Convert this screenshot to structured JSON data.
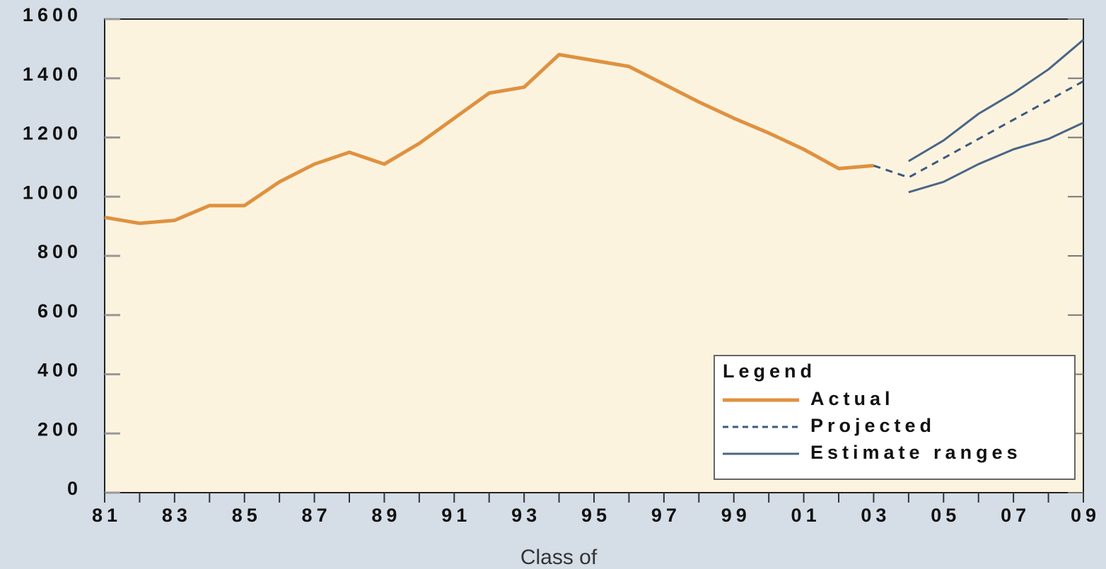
{
  "chart_data": {
    "type": "line",
    "xlabel": "Class of",
    "categories": [
      "81",
      null,
      "83",
      null,
      "85",
      null,
      "87",
      null,
      "89",
      null,
      "91",
      null,
      "93",
      null,
      "95",
      null,
      "97",
      null,
      "99",
      null,
      "01",
      null,
      "03",
      null,
      "05",
      null,
      "07",
      null,
      "09"
    ],
    "series": [
      {
        "name": "Actual",
        "color": "#e0913f",
        "width": 5,
        "values": [
          930,
          910,
          920,
          970,
          970,
          1050,
          1110,
          1150,
          1110,
          1180,
          1265,
          1350,
          1370,
          1480,
          1460,
          1440,
          1380,
          1320,
          1265,
          1215,
          1160,
          1095,
          1105,
          null,
          null,
          null,
          null,
          null,
          null
        ]
      },
      {
        "name": "Projected",
        "color": "#3d5a7e",
        "width": 3,
        "dashed": true,
        "values": [
          null,
          null,
          null,
          null,
          null,
          null,
          null,
          null,
          null,
          null,
          null,
          null,
          null,
          null,
          null,
          null,
          null,
          null,
          null,
          null,
          null,
          null,
          1105,
          1065,
          1130,
          1195,
          1260,
          1325,
          1390
        ]
      },
      {
        "name": "Estimate ranges",
        "color": "#4a6686",
        "width": 3,
        "values": [
          null,
          null,
          null,
          null,
          null,
          null,
          null,
          null,
          null,
          null,
          null,
          null,
          null,
          null,
          null,
          null,
          null,
          null,
          null,
          null,
          null,
          null,
          null,
          1120,
          1190,
          1280,
          1350,
          1430,
          1530
        ],
        "lower": [
          null,
          null,
          null,
          null,
          null,
          null,
          null,
          null,
          null,
          null,
          null,
          null,
          null,
          null,
          null,
          null,
          null,
          null,
          null,
          null,
          null,
          null,
          null,
          1015,
          1050,
          1110,
          1160,
          1195,
          1250
        ]
      }
    ],
    "ylim": [
      0,
      1600
    ],
    "yticks": [
      0,
      200,
      400,
      600,
      800,
      1000,
      1200,
      1400,
      1600
    ],
    "legend": {
      "title": "Legend",
      "position": "lower right"
    }
  }
}
